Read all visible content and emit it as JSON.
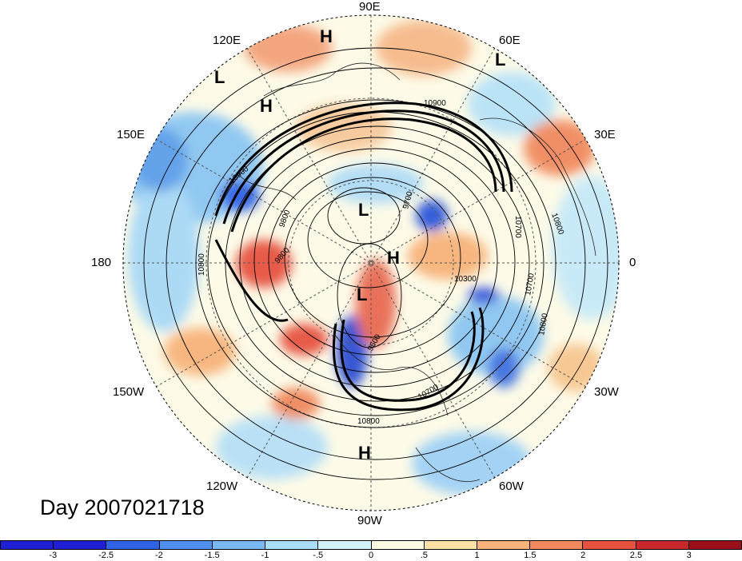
{
  "title": "Day 2007021718",
  "longitude_labels": [
    "90E",
    "60E",
    "30E",
    "0",
    "30W",
    "60W",
    "90W",
    "120W",
    "150W",
    "180",
    "150E",
    "120E"
  ],
  "pressure_markers": [
    {
      "type": "H",
      "name": "high-marker"
    },
    {
      "type": "H",
      "name": "high-marker"
    },
    {
      "type": "L",
      "name": "low-marker"
    },
    {
      "type": "L",
      "name": "low-marker"
    },
    {
      "type": "L",
      "name": "low-marker"
    },
    {
      "type": "H",
      "name": "high-marker"
    },
    {
      "type": "L",
      "name": "low-marker"
    },
    {
      "type": "H",
      "name": "high-marker"
    }
  ],
  "contour_labels": [
    "10900",
    "9700",
    "10700",
    "10800",
    "9800",
    "9800",
    "10800",
    "10300",
    "10700",
    "9600",
    "10700",
    "10800",
    "10900",
    "10800"
  ],
  "colorbar": {
    "tick_labels": [
      "-3",
      "-2.5",
      "-2",
      "-1.5",
      "-1",
      "-.5",
      "0",
      ".5",
      "1",
      "1.5",
      "2",
      "2.5",
      "3"
    ],
    "colors": [
      "#1f1fd4",
      "#2f63e6",
      "#4f8fee",
      "#7ab8f4",
      "#a8dcf7",
      "#d2f0fa",
      "#fefbe4",
      "#fbe1a6",
      "#f7b37a",
      "#f08a5e",
      "#e65240",
      "#c8282c",
      "#9b0f1a"
    ]
  }
}
